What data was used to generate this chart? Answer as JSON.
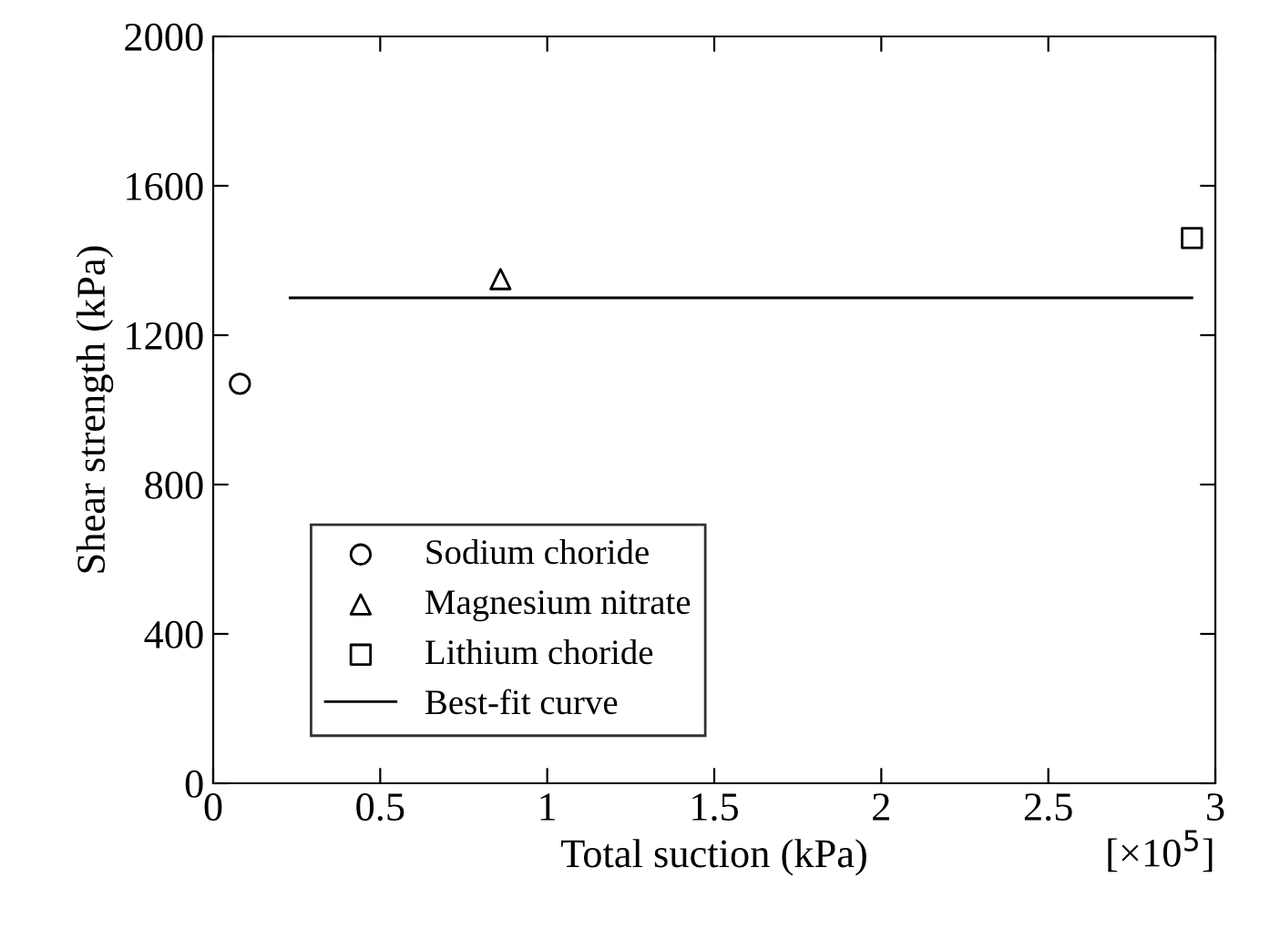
{
  "chart_data": {
    "type": "scatter",
    "xlabel": "Total suction (kPa)",
    "ylabel": "Shear strength (kPa)",
    "xlim": [
      0,
      3
    ],
    "xticks": [
      0,
      0.5,
      1,
      1.5,
      2,
      2.5,
      3
    ],
    "ylim": [
      0,
      2000
    ],
    "yticks": [
      0,
      400,
      800,
      1200,
      1600,
      2000
    ],
    "grid": false,
    "legend": "bottom left",
    "annotations": [
      "[×10$^{5}$]"
    ],
    "series": [
      {
        "name": "Sodium choride",
        "marker": "circle",
        "color": "#000000",
        "x": [
          0.08
        ],
        "values": [
          1070
        ]
      },
      {
        "name": "Magnesium nitrate",
        "marker": "triangle",
        "color": "#000000",
        "x": [
          0.86
        ],
        "values": [
          1350
        ]
      },
      {
        "name": "Lithium choride",
        "marker": "square",
        "color": "#000000",
        "x": [
          2.93
        ],
        "values": [
          1460
        ]
      },
      {
        "name": "Best-fit curve",
        "type": "line",
        "marker": "none",
        "line_style": "solid",
        "color": "#000000",
        "x": [
          0.23,
          2.93
        ],
        "values": [
          1300,
          1300
        ]
      }
    ]
  }
}
